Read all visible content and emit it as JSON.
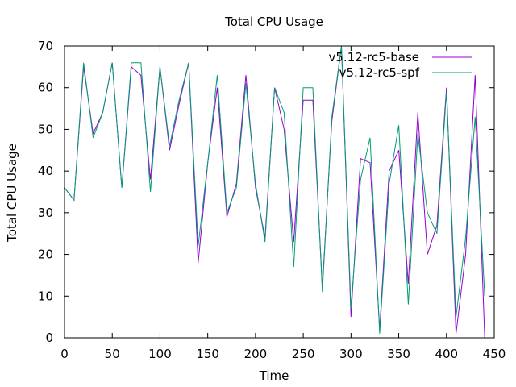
{
  "chart_data": {
    "type": "line",
    "title": "Total CPU Usage",
    "xlabel": "Time",
    "ylabel": "Total CPU Usage",
    "xlim": [
      0,
      450
    ],
    "ylim": [
      0,
      70
    ],
    "xticks": [
      0,
      50,
      100,
      150,
      200,
      250,
      300,
      350,
      400,
      450
    ],
    "yticks": [
      0,
      10,
      20,
      30,
      40,
      50,
      60,
      70
    ],
    "grid": false,
    "legend_position": "top-right",
    "series": [
      {
        "name": "v5.12-rc5-base",
        "color": "#9400d3",
        "x": [
          0,
          10,
          20,
          30,
          40,
          50,
          60,
          70,
          80,
          90,
          100,
          110,
          120,
          130,
          140,
          150,
          160,
          170,
          180,
          190,
          200,
          210,
          220,
          230,
          240,
          250,
          260,
          270,
          280,
          290,
          300,
          310,
          320,
          330,
          340,
          350,
          360,
          370,
          380,
          390,
          400,
          410,
          420,
          430,
          440
        ],
        "y": [
          36,
          33,
          65,
          49,
          54,
          66,
          36,
          65,
          63,
          38,
          65,
          45,
          56,
          66,
          18,
          42,
          60,
          29,
          37,
          63,
          36,
          24,
          60,
          50,
          23,
          57,
          57,
          12,
          52,
          70,
          5,
          43,
          42,
          2,
          40,
          45,
          13,
          54,
          20,
          27,
          60,
          1,
          20,
          63,
          0
        ]
      },
      {
        "name": "v5.12-rc5-spf",
        "color": "#009e73",
        "x": [
          0,
          10,
          20,
          30,
          40,
          50,
          60,
          70,
          80,
          90,
          100,
          110,
          120,
          130,
          140,
          150,
          160,
          170,
          180,
          190,
          200,
          210,
          220,
          230,
          240,
          250,
          260,
          270,
          280,
          290,
          300,
          310,
          320,
          330,
          340,
          350,
          360,
          370,
          380,
          390,
          400,
          410,
          420,
          430,
          440
        ],
        "y": [
          36,
          33,
          66,
          48,
          54,
          66,
          36,
          66,
          66,
          35,
          65,
          46,
          57,
          66,
          22,
          42,
          63,
          30,
          36,
          61,
          37,
          23,
          60,
          54,
          17,
          60,
          60,
          11,
          53,
          70,
          7,
          38,
          48,
          1,
          37,
          51,
          8,
          49,
          30,
          25,
          59,
          5,
          24,
          53,
          10
        ]
      }
    ]
  }
}
